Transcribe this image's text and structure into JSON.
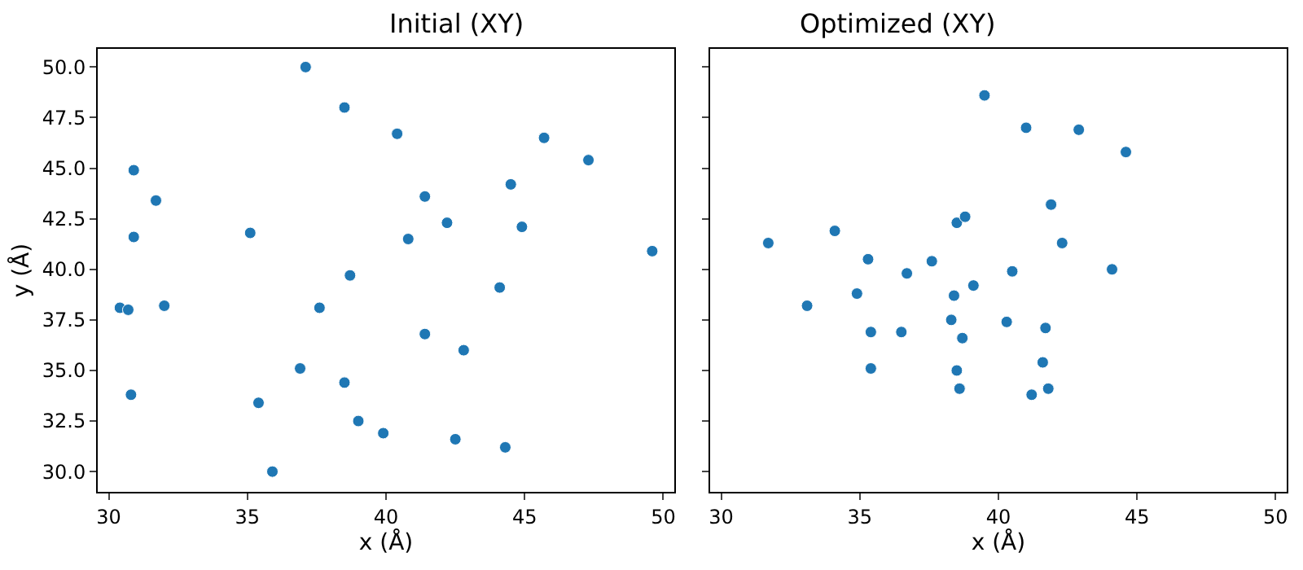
{
  "chart_data": [
    {
      "type": "scatter",
      "title": "Initial (XY)",
      "xlabel": "x (Å)",
      "ylabel": "y (Å)",
      "marker": "circle",
      "grid": false,
      "xlim": [
        29.6,
        50.4
      ],
      "ylim": [
        29.0,
        50.9
      ],
      "xticks": [
        30,
        35,
        40,
        45,
        50
      ],
      "yticks": [
        {
          "value": 30,
          "label": "30.0"
        },
        32.5,
        {
          "value": 35,
          "label": "35.0"
        },
        37.5,
        {
          "value": 40,
          "label": "40.0"
        },
        42.5,
        {
          "value": 45,
          "label": "45.0"
        },
        47.5,
        {
          "value": 50,
          "label": "50.0"
        }
      ],
      "series": [
        {
          "color": "#1f77b4",
          "x": [
            37.1,
            38.5,
            40.4,
            45.7,
            47.3,
            30.9,
            44.5,
            31.7,
            41.4,
            42.2,
            35.1,
            30.9,
            44.9,
            40.8,
            49.6,
            38.7,
            44.1,
            30.4,
            30.7,
            32.0,
            37.6,
            41.4,
            42.8,
            36.9,
            38.5,
            30.8,
            35.4,
            39.0,
            39.9,
            42.5,
            44.3,
            35.9
          ],
          "values": [
            50.0,
            48.0,
            46.7,
            46.5,
            45.4,
            44.9,
            44.2,
            43.4,
            43.6,
            42.3,
            41.8,
            41.6,
            42.1,
            41.5,
            40.9,
            39.7,
            39.1,
            38.1,
            38.0,
            38.2,
            38.1,
            36.8,
            36.0,
            35.1,
            34.4,
            33.8,
            33.4,
            32.5,
            31.9,
            31.6,
            31.2,
            30.0
          ]
        }
      ]
    },
    {
      "type": "scatter",
      "title": "Optimized (XY)",
      "xlabel": "x (Å)",
      "marker": "circle",
      "grid": false,
      "tick_labels": "x",
      "xlim": [
        29.6,
        50.4
      ],
      "ylim": [
        29.0,
        50.9
      ],
      "xticks": [
        30,
        35,
        40,
        45,
        50
      ],
      "yticks": [
        30,
        32.5,
        35,
        37.5,
        40,
        42.5,
        45,
        47.5,
        50
      ],
      "series": [
        {
          "color": "#1f77b4",
          "x": [
            39.5,
            41.0,
            42.9,
            44.6,
            41.9,
            38.5,
            38.8,
            34.1,
            31.7,
            42.3,
            35.3,
            37.6,
            36.7,
            40.5,
            44.1,
            39.1,
            34.9,
            38.4,
            33.1,
            38.3,
            40.3,
            41.7,
            35.4,
            36.5,
            38.7,
            41.6,
            35.4,
            38.5,
            38.6,
            41.8,
            41.2
          ],
          "values": [
            48.6,
            47.0,
            46.9,
            45.8,
            43.2,
            42.3,
            42.6,
            41.9,
            41.3,
            41.3,
            40.5,
            40.4,
            39.8,
            39.9,
            40.0,
            39.2,
            38.8,
            38.7,
            38.2,
            37.5,
            37.4,
            37.1,
            36.9,
            36.9,
            36.6,
            35.4,
            35.1,
            35.0,
            34.1,
            34.1,
            33.8
          ]
        }
      ]
    }
  ]
}
